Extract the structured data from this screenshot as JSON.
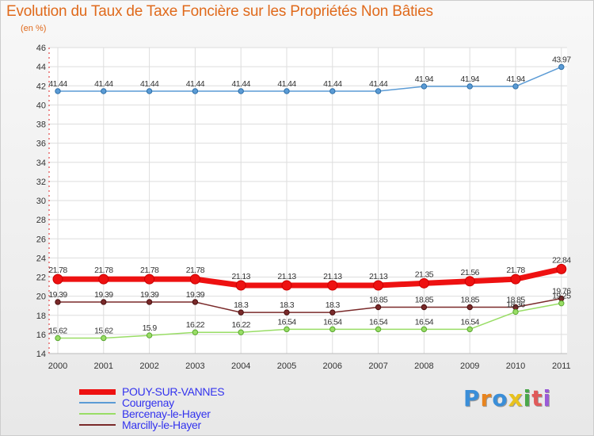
{
  "title": "Evolution du Taux de Taxe Foncière sur les Propriétés Non Bâties",
  "subtitle": "(en %)",
  "logo": {
    "text": "Proxiti",
    "colors": [
      "#3a8ed8",
      "#e8841e",
      "#3a8ed8",
      "#e8c21e",
      "#4aa84a",
      "#e05a5a",
      "#9a5ad8"
    ]
  },
  "chart_data": {
    "type": "line",
    "title": "Evolution du Taux de Taxe Foncière sur les Propriétés Non Bâties",
    "ylabel": "(en %)",
    "xlabel": "",
    "categories": [
      "2000",
      "2001",
      "2002",
      "2003",
      "2004",
      "2005",
      "2006",
      "2007",
      "2008",
      "2009",
      "2010",
      "2011"
    ],
    "ylim": [
      14,
      46
    ],
    "yticks": [
      "14",
      "16",
      "18",
      "20",
      "22",
      "24",
      "26",
      "28",
      "30",
      "32",
      "34",
      "36",
      "38",
      "40",
      "42",
      "44",
      "46"
    ],
    "grid": true,
    "legend_position": "bottom-left",
    "series": [
      {
        "name": "Courgenay",
        "color": "#5b9bd5",
        "values": [
          41.44,
          41.44,
          41.44,
          41.44,
          41.44,
          41.44,
          41.44,
          41.44,
          41.94,
          41.94,
          41.94,
          43.97
        ],
        "labels": [
          "41.44",
          "41.44",
          "41.44",
          "41.44",
          "41.44",
          "41.44",
          "41.44",
          "41.44",
          "41.94",
          "41.94",
          "41.94",
          "43.97"
        ]
      },
      {
        "name": "POUY-SUR-VANNES",
        "color": "#ee1111",
        "values": [
          21.78,
          21.78,
          21.78,
          21.78,
          21.13,
          21.13,
          21.13,
          21.13,
          21.35,
          21.56,
          21.78,
          22.84
        ],
        "labels": [
          "21.78",
          "21.78",
          "21.78",
          "21.78",
          "21.13",
          "21.13",
          "21.13",
          "21.13",
          "21.35",
          "21.56",
          "21.78",
          "22.84"
        ]
      },
      {
        "name": "Marcilly-le-Hayer",
        "color": "#7a2a2a",
        "values": [
          19.39,
          19.39,
          19.39,
          19.39,
          18.3,
          18.3,
          18.3,
          18.85,
          18.85,
          18.85,
          18.85,
          19.76
        ],
        "labels": [
          "19.39",
          "19.39",
          "19.39",
          "19.39",
          "18.3",
          "18.3",
          "18.3",
          "18.85",
          "18.85",
          "18.85",
          "18.85",
          "19.76"
        ]
      },
      {
        "name": "Bercenay-le-Hayer",
        "color": "#99dd66",
        "values": [
          15.62,
          15.62,
          15.9,
          16.22,
          16.22,
          16.54,
          16.54,
          16.54,
          16.54,
          16.54,
          18.36,
          19.25
        ],
        "labels": [
          "15.62",
          "15.62",
          "15.9",
          "16.22",
          "16.22",
          "16.54",
          "16.54",
          "16.54",
          "16.54",
          "16.54",
          "18.36",
          "19.25"
        ]
      }
    ],
    "legend": [
      "POUY-SUR-VANNES",
      "Courgenay",
      "Bercenay-le-Hayer",
      "Marcilly-le-Hayer"
    ]
  }
}
